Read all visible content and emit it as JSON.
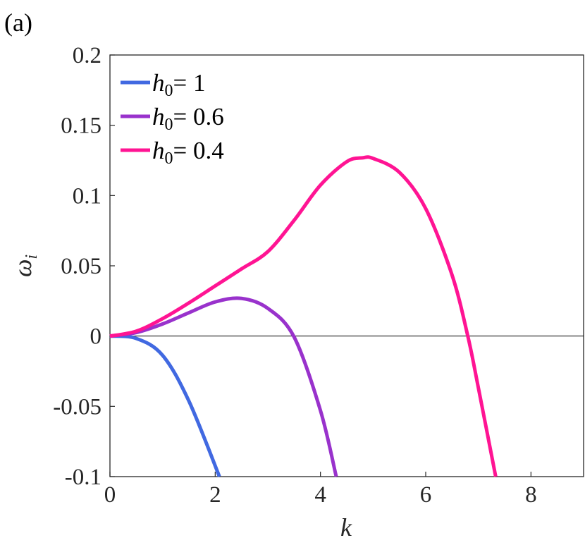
{
  "panel_label": "(a)",
  "chart_data": {
    "type": "line",
    "xlabel": "k",
    "ylabel": "ω",
    "ylabel_sub": "i",
    "xlim": [
      0,
      9
    ],
    "ylim": [
      -0.1,
      0.2
    ],
    "xticks": [
      0,
      2,
      4,
      6,
      8
    ],
    "xtick_labels": [
      "0",
      "2",
      "4",
      "6",
      "8"
    ],
    "yticks": [
      -0.1,
      -0.05,
      0,
      0.05,
      0.1,
      0.15,
      0.2
    ],
    "ytick_labels": [
      "-0.1",
      "-0.05",
      "0",
      "0.05",
      "0.1",
      "0.15",
      "0.2"
    ],
    "zero_line": true,
    "legend_position": "top-left",
    "series": [
      {
        "name": "h0= 1",
        "name_main": "h",
        "name_sub": "0",
        "name_rest": "= 1",
        "color": "#4169E1",
        "x": [
          0,
          0.5,
          1.0,
          1.5,
          2.08
        ],
        "y": [
          0,
          -0.0017,
          -0.0137,
          -0.0462,
          -0.1
        ]
      },
      {
        "name": "h0= 0.6",
        "name_main": "h",
        "name_sub": "0",
        "name_rest": "= 0.6",
        "color": "#9932CC",
        "x": [
          0,
          0.5,
          1.0,
          1.5,
          2.0,
          2.5,
          3.0,
          3.5,
          4.0,
          4.3
        ],
        "y": [
          0,
          0.0025,
          0.0086,
          0.0166,
          0.0243,
          0.0268,
          0.0197,
          -0.0007,
          -0.053,
          -0.1
        ]
      },
      {
        "name": "h0= 0.4",
        "name_main": "h",
        "name_sub": "0",
        "name_rest": "= 0.4",
        "color": "#FF1493",
        "x": [
          0,
          0.5,
          1.0,
          1.5,
          2.0,
          2.5,
          3.0,
          3.5,
          4.0,
          4.5,
          4.8,
          5.0,
          5.5,
          6.0,
          6.5,
          6.8,
          7.0,
          7.33
        ],
        "y": [
          0,
          0.0035,
          0.0124,
          0.0236,
          0.0357,
          0.0478,
          0.0601,
          0.0824,
          0.1074,
          0.1241,
          0.1268,
          0.1264,
          0.1165,
          0.0907,
          0.0435,
          0.0,
          -0.0367,
          -0.1
        ]
      }
    ]
  }
}
